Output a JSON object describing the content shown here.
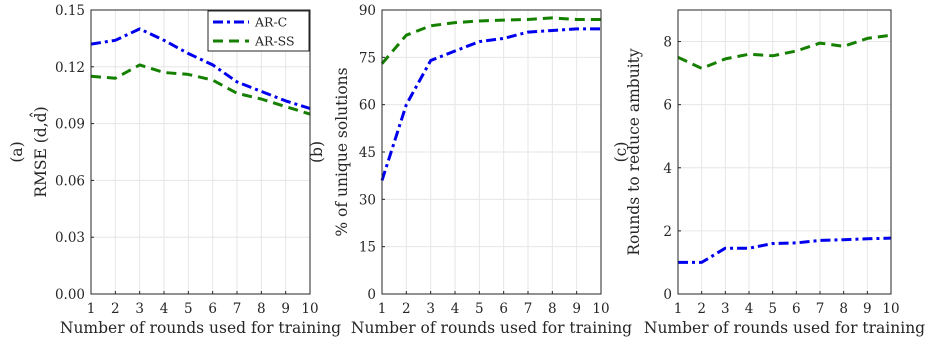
{
  "chart_data": [
    {
      "type": "line",
      "panel_tag": "(a)",
      "xlabel": "Number of rounds used for training",
      "ylabel": "RMSE (d,d̂)",
      "x": [
        1,
        2,
        3,
        4,
        5,
        6,
        7,
        8,
        9,
        10
      ],
      "xlim": [
        1,
        10
      ],
      "ylim": [
        0,
        0.15
      ],
      "xticks": [
        "1",
        "2",
        "3",
        "4",
        "5",
        "6",
        "7",
        "8",
        "9",
        "10"
      ],
      "yticks": [
        "0.00",
        "0.03",
        "0.06",
        "0.09",
        "0.12",
        "0.15"
      ],
      "ytick_values": [
        0,
        0.03,
        0.06,
        0.09,
        0.12,
        0.15
      ],
      "grid": true,
      "legend": "top-right",
      "series": [
        {
          "name": "AR-C",
          "style": "dash-dot",
          "color": "#0000ee",
          "values": [
            0.132,
            0.134,
            0.14,
            0.134,
            0.127,
            0.121,
            0.112,
            0.107,
            0.102,
            0.098
          ]
        },
        {
          "name": "AR-SS",
          "style": "dashed",
          "color": "#158000",
          "values": [
            0.115,
            0.114,
            0.121,
            0.117,
            0.116,
            0.113,
            0.106,
            0.103,
            0.099,
            0.095
          ]
        }
      ]
    },
    {
      "type": "line",
      "panel_tag": "(b)",
      "xlabel": "Number of rounds used for training",
      "ylabel": "% of unique solutions",
      "x": [
        1,
        2,
        3,
        4,
        5,
        6,
        7,
        8,
        9,
        10
      ],
      "xlim": [
        1,
        10
      ],
      "ylim": [
        0,
        90
      ],
      "xticks": [
        "1",
        "2",
        "3",
        "4",
        "5",
        "6",
        "7",
        "8",
        "9",
        "10"
      ],
      "yticks": [
        "0",
        "15",
        "30",
        "45",
        "60",
        "75",
        "90"
      ],
      "ytick_values": [
        0,
        15,
        30,
        45,
        60,
        75,
        90
      ],
      "grid": true,
      "series": [
        {
          "name": "AR-C",
          "style": "dash-dot",
          "color": "#0000ee",
          "values": [
            36,
            60,
            74,
            77,
            80,
            81,
            83,
            83.5,
            84,
            84
          ]
        },
        {
          "name": "AR-SS",
          "style": "dashed",
          "color": "#158000",
          "values": [
            73,
            82,
            85,
            86,
            86.5,
            86.8,
            87,
            87.5,
            87,
            87
          ]
        }
      ]
    },
    {
      "type": "line",
      "panel_tag": "(c)",
      "xlabel": "Number of rounds used for training",
      "ylabel": "Rounds to reduce ambuity",
      "x": [
        1,
        2,
        3,
        4,
        5,
        6,
        7,
        8,
        9,
        10
      ],
      "xlim": [
        1,
        10
      ],
      "ylim": [
        0,
        9
      ],
      "xticks": [
        "1",
        "2",
        "3",
        "4",
        "5",
        "6",
        "7",
        "8",
        "9",
        "10"
      ],
      "yticks": [
        "0",
        "2",
        "4",
        "6",
        "8"
      ],
      "ytick_values": [
        0,
        2,
        4,
        6,
        8
      ],
      "grid": true,
      "series": [
        {
          "name": "AR-C",
          "style": "dash-dot",
          "color": "#0000ee",
          "values": [
            1.0,
            1.0,
            1.45,
            1.45,
            1.6,
            1.62,
            1.7,
            1.72,
            1.75,
            1.77
          ]
        },
        {
          "name": "AR-SS",
          "style": "dashed",
          "color": "#158000",
          "values": [
            7.5,
            7.15,
            7.45,
            7.6,
            7.55,
            7.7,
            7.95,
            7.85,
            8.1,
            8.2
          ]
        }
      ]
    }
  ]
}
